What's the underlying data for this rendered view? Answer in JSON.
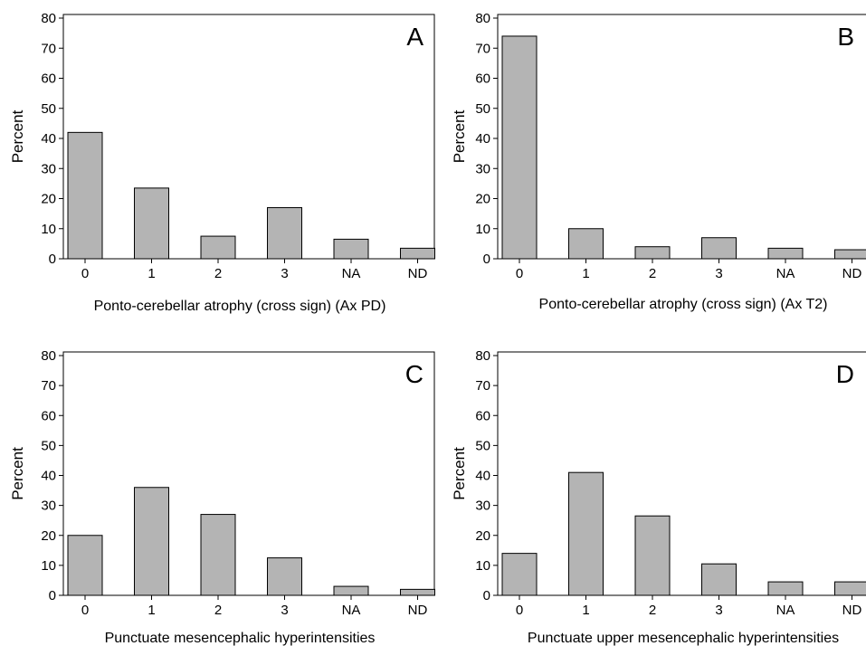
{
  "chart_data": [
    {
      "type": "bar",
      "panel": "A",
      "categories": [
        "0",
        "1",
        "2",
        "3",
        "NA",
        "ND"
      ],
      "values": [
        42,
        23.5,
        7.5,
        17,
        6.5,
        3.5
      ],
      "xlabel": "Ponto-cerebellar atrophy (cross sign) (Ax PD)",
      "ylabel": "Percent",
      "ylim": [
        0,
        80
      ],
      "yticks": [
        "0",
        "10",
        "20",
        "30",
        "40",
        "50",
        "60",
        "70",
        "80"
      ],
      "grid": false,
      "bar_color": "#b4b4b4"
    },
    {
      "type": "bar",
      "panel": "B",
      "categories": [
        "0",
        "1",
        "2",
        "3",
        "NA",
        "ND"
      ],
      "values": [
        74,
        10,
        4,
        7,
        3.5,
        3
      ],
      "xlabel": "Ponto-cerebellar atrophy (cross sign) (Ax T2)",
      "ylabel": "Percent",
      "ylim": [
        0,
        80
      ],
      "yticks": [
        "0",
        "10",
        "20",
        "30",
        "40",
        "50",
        "60",
        "70",
        "80"
      ],
      "grid": false,
      "bar_color": "#b4b4b4"
    },
    {
      "type": "bar",
      "panel": "C",
      "categories": [
        "0",
        "1",
        "2",
        "3",
        "NA",
        "ND"
      ],
      "values": [
        20,
        36,
        27,
        12.5,
        3,
        2
      ],
      "xlabel": "Punctuate mesencephalic hyperintensities",
      "ylabel": "Percent",
      "ylim": [
        0,
        80
      ],
      "yticks": [
        "0",
        "10",
        "20",
        "30",
        "40",
        "50",
        "60",
        "70",
        "80"
      ],
      "grid": false,
      "bar_color": "#b4b4b4"
    },
    {
      "type": "bar",
      "panel": "D",
      "categories": [
        "0",
        "1",
        "2",
        "3",
        "NA",
        "ND"
      ],
      "values": [
        14,
        41,
        26.5,
        10.5,
        4.5,
        4.5
      ],
      "xlabel": "Punctuate upper mesencephalic hyperintensities",
      "ylabel": "Percent",
      "ylim": [
        0,
        80
      ],
      "yticks": [
        "0",
        "10",
        "20",
        "30",
        "40",
        "50",
        "60",
        "70",
        "80"
      ],
      "grid": false,
      "bar_color": "#b4b4b4"
    }
  ]
}
